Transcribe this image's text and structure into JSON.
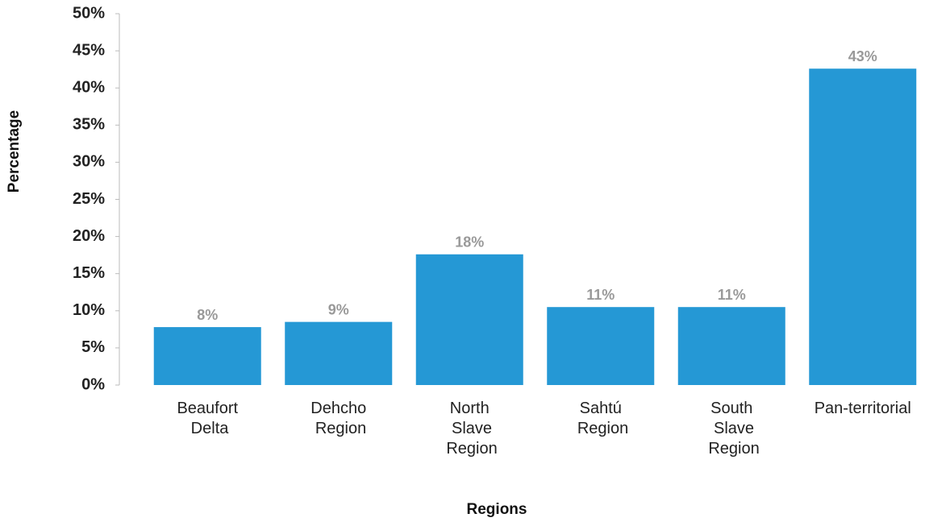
{
  "chart_data": {
    "type": "bar",
    "x_label": "Regions",
    "y_label": "Percentage",
    "categories": [
      "Beaufort Delta",
      "Dehcho Region",
      "North Slave Region",
      "Sahtú Region",
      "South Slave Region",
      "Pan-territorial"
    ],
    "values": [
      7.8,
      8.5,
      17.6,
      10.5,
      10.5,
      42.6
    ],
    "value_labels": [
      "8%",
      "9%",
      "18%",
      "11%",
      "11%",
      "43%"
    ],
    "color": "#2598d5",
    "ylim": [
      0,
      50
    ],
    "yticks": [
      {
        "value": 0,
        "label": "0%"
      },
      {
        "value": 5,
        "label": "5%"
      },
      {
        "value": 10,
        "label": "10%"
      },
      {
        "value": 15,
        "label": "15%"
      },
      {
        "value": 20,
        "label": "20%"
      },
      {
        "value": 25,
        "label": "25%"
      },
      {
        "value": 30,
        "label": "30%"
      },
      {
        "value": 35,
        "label": "35%"
      },
      {
        "value": 40,
        "label": "40%"
      },
      {
        "value": 45,
        "label": "45%"
      },
      {
        "value": 50,
        "label": "50%"
      }
    ],
    "grid": false
  }
}
